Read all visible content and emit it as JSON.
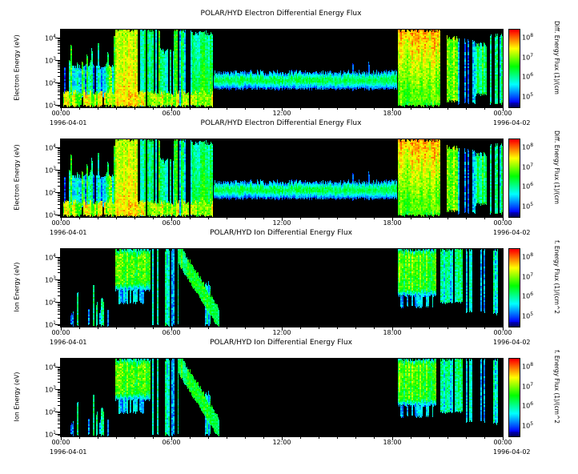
{
  "panels": [
    {
      "title": "POLAR/HYD  Electron Differential Energy Flux",
      "ylabel": "Electron Energy (eV)",
      "cbar_label": "Diff. Energy Flux (1)/(cm",
      "features": "electron"
    },
    {
      "title": "POLAR/HYD  Electron Differential Energy Flux",
      "ylabel": "Electron Energy (eV)",
      "cbar_label": "Diff. Energy Flux (1)/(cm",
      "features": "electron"
    },
    {
      "title": "POLAR/HYD  Ion Differential Energy Flux",
      "ylabel": "Ion Energy (eV)",
      "cbar_label": "f. Energy Flux (1)/(cm^2",
      "features": "ion"
    },
    {
      "title": "POLAR/HYD  Ion Differential Energy Flux",
      "ylabel": "Ion Energy (eV)",
      "cbar_label": "f. Energy Flux (1)/(cm^2",
      "features": "ion"
    }
  ],
  "x_axis": {
    "ticks": [
      {
        "t": 0,
        "label": "00:00"
      },
      {
        "t": 6,
        "label": "06:00"
      },
      {
        "t": 12,
        "label": "12:00"
      },
      {
        "t": 18,
        "label": "18:00"
      },
      {
        "t": 24,
        "label": "00:00"
      }
    ],
    "minor_tick_hours": 1,
    "date_left": "1996-04-01",
    "date_right": "1996-04-02"
  },
  "y_axis": {
    "log_range": [
      0.9,
      4.35
    ],
    "ticks": [
      {
        "value": 1,
        "exp": "1"
      },
      {
        "value": 2,
        "exp": "2"
      },
      {
        "value": 3,
        "exp": "3"
      },
      {
        "value": 4,
        "exp": "4"
      }
    ]
  },
  "colorbar": {
    "range": [
      4.45,
      8.35
    ],
    "ticks": [
      {
        "value": 8,
        "exp": "8"
      },
      {
        "value": 7,
        "exp": "7"
      },
      {
        "value": 6,
        "exp": "6"
      },
      {
        "value": 5,
        "exp": "5"
      }
    ]
  },
  "chart_data": {
    "type": "heatmap",
    "title": "POLAR/HYD Electron and Ion Differential Energy Flux spectrograms",
    "x_start": "1996-04-01 00:00",
    "x_end": "1996-04-02 00:00",
    "x_range_hours": [
      0,
      24
    ],
    "y_units": "eV",
    "y_scale": "log",
    "y_log_range": [
      0.9,
      4.35
    ],
    "flux_units": "(1)/(cm^2 s sr eV)",
    "flux_log_range": [
      4.7,
      8.3
    ],
    "colormap": "rainbow-on-black",
    "feature_sets": {
      "electron": {
        "seed": 7,
        "features": [
          {
            "type": "band",
            "t0": 0.1,
            "t1": 8.25,
            "e0": 1.0,
            "e1": 1.55,
            "i": 7.1,
            "iv": 0.45,
            "pv": 0.7,
            "density": 0.93
          },
          {
            "type": "blob",
            "t0": 0.15,
            "t1": 2.95,
            "e0": 1.4,
            "e1": 2.7,
            "i": 5.3,
            "iv": 0.5,
            "pv": 0.7,
            "density": 0.85
          },
          {
            "type": "spikes",
            "t0": 0.3,
            "t1": 2.95,
            "e0": 1.4,
            "e1": 4.1,
            "i": 6.3,
            "iv": 0.7,
            "pv": 0.8,
            "density": 0.5,
            "hvar": 1.6
          },
          {
            "type": "blob",
            "t0": 2.95,
            "t1": 4.15,
            "e0": 1.0,
            "e1": 4.35,
            "i": 7.55,
            "iv": 0.2,
            "pv": 0.55,
            "grad": -0.12
          },
          {
            "type": "stripes",
            "t0": 4.3,
            "t1": 5.35,
            "e0": 1.0,
            "e1": 4.35,
            "i": 6.1,
            "iv": 0.65,
            "pv": 0.7,
            "density": 0.7
          },
          {
            "type": "blob",
            "t0": 5.35,
            "t1": 6.1,
            "e0": 1.0,
            "e1": 3.4,
            "i": 5.7,
            "iv": 0.5,
            "pv": 0.7,
            "density": 0.9
          },
          {
            "type": "stripes",
            "t0": 6.1,
            "t1": 7.15,
            "e0": 1.0,
            "e1": 4.35,
            "i": 5.9,
            "iv": 0.7,
            "pv": 0.7,
            "density": 0.6
          },
          {
            "type": "blob",
            "t0": 7.15,
            "t1": 8.25,
            "e0": 1.0,
            "e1": 4.2,
            "i": 6.6,
            "iv": 0.35,
            "pv": 0.6,
            "grad": -0.22
          },
          {
            "type": "band",
            "t0": 8.3,
            "t1": 18.25,
            "e0": 1.75,
            "e1": 2.45,
            "i": 6.25,
            "iv": 0.15,
            "pv": 0.45,
            "edge": 0.28
          },
          {
            "type": "spikes",
            "t0": 8.5,
            "t1": 18.0,
            "e0": 1.7,
            "e1": 3.3,
            "i": 5.0,
            "iv": 0.3,
            "pv": 0.5,
            "density": 0.05,
            "hvar": 0.8
          },
          {
            "type": "blob",
            "t0": 18.3,
            "t1": 20.6,
            "e0": 1.2,
            "e1": 4.35,
            "i": 6.6,
            "iv": 0.3,
            "pv": 0.6,
            "grad": 0.33
          },
          {
            "type": "band",
            "t0": 18.3,
            "t1": 20.6,
            "e0": 1.0,
            "e1": 1.45,
            "i": 6.7,
            "iv": 0.4,
            "pv": 0.6
          },
          {
            "type": "blob",
            "t0": 20.95,
            "t1": 21.55,
            "e0": 1.2,
            "e1": 4.0,
            "i": 6.8,
            "iv": 0.4,
            "pv": 0.7
          },
          {
            "type": "stripes",
            "t0": 21.55,
            "t1": 22.5,
            "e0": 1.1,
            "e1": 3.9,
            "i": 5.6,
            "iv": 0.6,
            "pv": 0.7,
            "density": 0.6
          },
          {
            "type": "blob",
            "t0": 22.5,
            "t1": 23.1,
            "e0": 1.5,
            "e1": 3.7,
            "i": 6.3,
            "iv": 0.4,
            "pv": 0.7
          },
          {
            "type": "stripes",
            "t0": 23.3,
            "t1": 24.0,
            "e0": 1.1,
            "e1": 4.1,
            "i": 6.0,
            "iv": 0.6,
            "pv": 0.8,
            "density": 0.65
          }
        ]
      },
      "ion": {
        "seed": 3,
        "features": [
          {
            "type": "spikes",
            "t0": 0.5,
            "t1": 2.6,
            "e0": 1.0,
            "e1": 2.4,
            "i": 5.6,
            "iv": 0.6,
            "pv": 0.7,
            "density": 0.3,
            "hvar": 1.1
          },
          {
            "type": "spikes",
            "t0": 0.7,
            "t1": 2.4,
            "e0": 1.0,
            "e1": 3.3,
            "i": 5.9,
            "iv": 0.5,
            "pv": 0.7,
            "density": 0.08,
            "hvar": 0.8
          },
          {
            "type": "blob",
            "t0": 2.95,
            "t1": 4.85,
            "e0": 2.55,
            "e1": 4.35,
            "i": 6.55,
            "iv": 0.3,
            "pv": 0.75,
            "grad": 0.12,
            "edge": 0.3
          },
          {
            "type": "blob",
            "t0": 3.1,
            "t1": 4.6,
            "e0": 2.0,
            "e1": 2.6,
            "i": 5.3,
            "iv": 0.4,
            "pv": 0.6,
            "density": 0.6
          },
          {
            "type": "stripes",
            "t0": 4.9,
            "t1": 6.35,
            "e0": 1.0,
            "e1": 4.35,
            "i": 5.9,
            "iv": 0.7,
            "pv": 0.7,
            "density": 0.55
          },
          {
            "type": "diagonal",
            "t0": 6.35,
            "t1": 8.6,
            "e0": 1.25,
            "e1": 4.2,
            "w": 0.45,
            "i": 6.35,
            "iv": 0.3,
            "pv": 0.6
          },
          {
            "type": "stripes",
            "t0": 7.8,
            "t1": 8.1,
            "e0": 1.0,
            "e1": 2.8,
            "i": 5.7,
            "iv": 0.4,
            "pv": 0.6,
            "density": 0.7
          },
          {
            "type": "blob",
            "t0": 18.3,
            "t1": 20.35,
            "e0": 2.3,
            "e1": 4.35,
            "i": 6.5,
            "iv": 0.35,
            "pv": 0.7,
            "grad": 0.12,
            "edge": 0.25
          },
          {
            "type": "blob",
            "t0": 18.4,
            "t1": 20.2,
            "e0": 1.8,
            "e1": 2.35,
            "i": 5.3,
            "iv": 0.4,
            "pv": 0.6,
            "density": 0.6
          },
          {
            "type": "blob",
            "t0": 20.5,
            "t1": 21.8,
            "e0": 2.0,
            "e1": 4.35,
            "i": 5.8,
            "iv": 0.5,
            "pv": 0.7,
            "density": 0.85,
            "grad": 0.1
          },
          {
            "type": "stripes",
            "t0": 22.0,
            "t1": 23.0,
            "e0": 1.6,
            "e1": 4.35,
            "i": 5.4,
            "iv": 0.5,
            "pv": 0.7,
            "density": 0.5
          },
          {
            "type": "stripes",
            "t0": 23.25,
            "t1": 23.7,
            "e0": 1.5,
            "e1": 4.3,
            "i": 5.7,
            "iv": 0.5,
            "pv": 0.7,
            "density": 0.7
          }
        ]
      }
    }
  }
}
